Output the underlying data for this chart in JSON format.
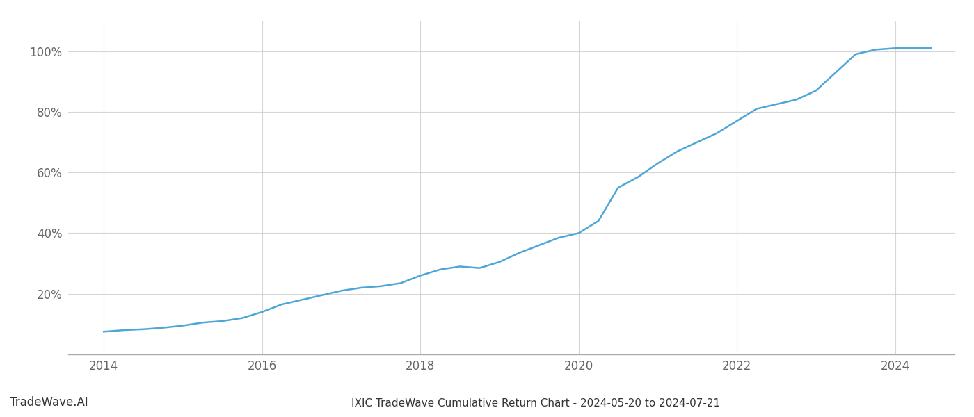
{
  "title": "IXIC TradeWave Cumulative Return Chart - 2024-05-20 to 2024-07-21",
  "watermark": "TradeWave.AI",
  "line_color": "#4da6d8",
  "line_width": 1.8,
  "background_color": "#ffffff",
  "grid_color": "#cccccc",
  "x_data": [
    2014.0,
    2014.25,
    2014.5,
    2014.75,
    2015.0,
    2015.25,
    2015.5,
    2015.75,
    2016.0,
    2016.25,
    2016.5,
    2016.75,
    2017.0,
    2017.25,
    2017.5,
    2017.75,
    2018.0,
    2018.25,
    2018.5,
    2018.75,
    2019.0,
    2019.25,
    2019.5,
    2019.75,
    2020.0,
    2020.25,
    2020.5,
    2020.75,
    2021.0,
    2021.25,
    2021.5,
    2021.75,
    2022.0,
    2022.25,
    2022.5,
    2022.75,
    2023.0,
    2023.25,
    2023.5,
    2023.75,
    2024.0,
    2024.25,
    2024.45
  ],
  "y_data": [
    7.5,
    8.0,
    8.3,
    8.8,
    9.5,
    10.5,
    11.0,
    12.0,
    14.0,
    16.5,
    18.0,
    19.5,
    21.0,
    22.0,
    22.5,
    23.5,
    26.0,
    28.0,
    29.0,
    28.5,
    30.5,
    33.5,
    36.0,
    38.5,
    40.0,
    44.0,
    55.0,
    58.5,
    63.0,
    67.0,
    70.0,
    73.0,
    77.0,
    81.0,
    82.5,
    84.0,
    87.0,
    93.0,
    99.0,
    100.5,
    101.0,
    101.0,
    101.0
  ],
  "xlim": [
    2013.55,
    2024.75
  ],
  "ylim": [
    0,
    110
  ],
  "yticks": [
    20,
    40,
    60,
    80,
    100
  ],
  "xticks": [
    2014,
    2016,
    2018,
    2020,
    2022,
    2024
  ],
  "title_fontsize": 11,
  "tick_fontsize": 12,
  "watermark_fontsize": 12
}
